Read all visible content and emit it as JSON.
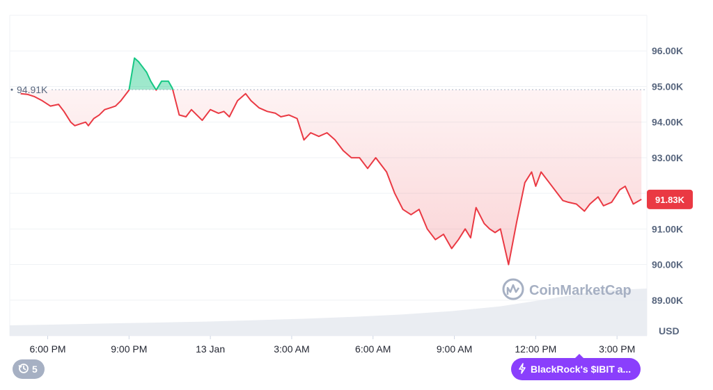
{
  "chart_data": {
    "type": "line",
    "title": "",
    "currency_unit": "USD",
    "reference_value": 94.91,
    "reference_label": "94.91K",
    "current_value": 91.83,
    "current_label": "91.83K",
    "y_unit": "K",
    "ylim": [
      88.0,
      97.0
    ],
    "y_ticks": [
      "96.00K",
      "95.00K",
      "94.00K",
      "93.00K",
      "91.00K",
      "90.00K",
      "89.00K"
    ],
    "y_tick_values": [
      96,
      95,
      94,
      93,
      91,
      90,
      89
    ],
    "x_tick_labels": [
      "6:00 PM",
      "9:00 PM",
      "13 Jan",
      "3:00 AM",
      "6:00 AM",
      "9:00 AM",
      "12:00 PM",
      "3:00 PM"
    ],
    "x_tick_hours": [
      0,
      3,
      6,
      9,
      12,
      15,
      18,
      21
    ],
    "xlim_hours": [
      -1.4,
      22.1
    ],
    "grid": true,
    "above_color": "#16c784",
    "below_color": "#ea3943",
    "x_hours": [
      -1.0,
      -0.75,
      -0.5,
      -0.2,
      0.1,
      0.4,
      0.6,
      0.85,
      1.0,
      1.2,
      1.4,
      1.5,
      1.7,
      1.9,
      2.1,
      2.3,
      2.5,
      2.7,
      3.0,
      3.2,
      3.35,
      3.5,
      3.65,
      3.8,
      4.0,
      4.2,
      4.45,
      4.6,
      4.85,
      5.1,
      5.3,
      5.5,
      5.7,
      6.0,
      6.3,
      6.5,
      6.7,
      7.0,
      7.3,
      7.5,
      7.8,
      8.1,
      8.4,
      8.6,
      8.9,
      9.2,
      9.45,
      9.7,
      10.0,
      10.3,
      10.6,
      10.9,
      11.2,
      11.5,
      11.8,
      12.1,
      12.5,
      12.8,
      13.1,
      13.4,
      13.7,
      14.0,
      14.3,
      14.6,
      14.9,
      15.15,
      15.4,
      15.6,
      15.8,
      16.1,
      16.3,
      16.5,
      16.7,
      17.0,
      17.3,
      17.6,
      17.85,
      18.0,
      18.2,
      18.5,
      18.8,
      19.0,
      19.2,
      19.5,
      19.8,
      20.0,
      20.3,
      20.5,
      20.8,
      21.1,
      21.3,
      21.6,
      21.9
    ],
    "values": [
      94.8,
      94.78,
      94.72,
      94.6,
      94.45,
      94.5,
      94.3,
      94.0,
      93.9,
      93.95,
      94.0,
      93.9,
      94.1,
      94.2,
      94.35,
      94.4,
      94.45,
      94.6,
      94.9,
      95.8,
      95.7,
      95.55,
      95.4,
      95.15,
      94.9,
      95.15,
      95.15,
      94.95,
      94.2,
      94.15,
      94.35,
      94.2,
      94.05,
      94.35,
      94.25,
      94.3,
      94.15,
      94.6,
      94.8,
      94.6,
      94.4,
      94.3,
      94.25,
      94.15,
      94.2,
      94.1,
      93.5,
      93.7,
      93.6,
      93.7,
      93.5,
      93.2,
      93.0,
      93.0,
      92.7,
      93.0,
      92.6,
      92.0,
      91.55,
      91.4,
      91.55,
      91.0,
      90.7,
      90.85,
      90.45,
      90.7,
      91.0,
      90.75,
      91.6,
      91.15,
      91.0,
      90.9,
      91.0,
      90.0,
      91.2,
      92.3,
      92.6,
      92.2,
      92.6,
      92.3,
      92.0,
      91.8,
      91.75,
      91.7,
      91.5,
      91.7,
      91.9,
      91.65,
      91.75,
      92.1,
      92.2,
      91.7,
      91.83
    ],
    "volume_relative": [
      0.22,
      0.24,
      0.26,
      0.28,
      0.3,
      0.33,
      0.36,
      0.4,
      0.45,
      0.52,
      0.62,
      0.78,
      0.95,
      1.0
    ]
  },
  "watermark": {
    "brand_name": "CoinMarketCap",
    "logo_icon": "coinmarketcap-logo-icon"
  },
  "controls": {
    "events_count": "5",
    "events_icon": "history-clock-icon",
    "news_label": "BlackRock's $IBIT a...",
    "news_icon": "lightning-bolt-icon",
    "news_color": "#8a3ffc"
  }
}
